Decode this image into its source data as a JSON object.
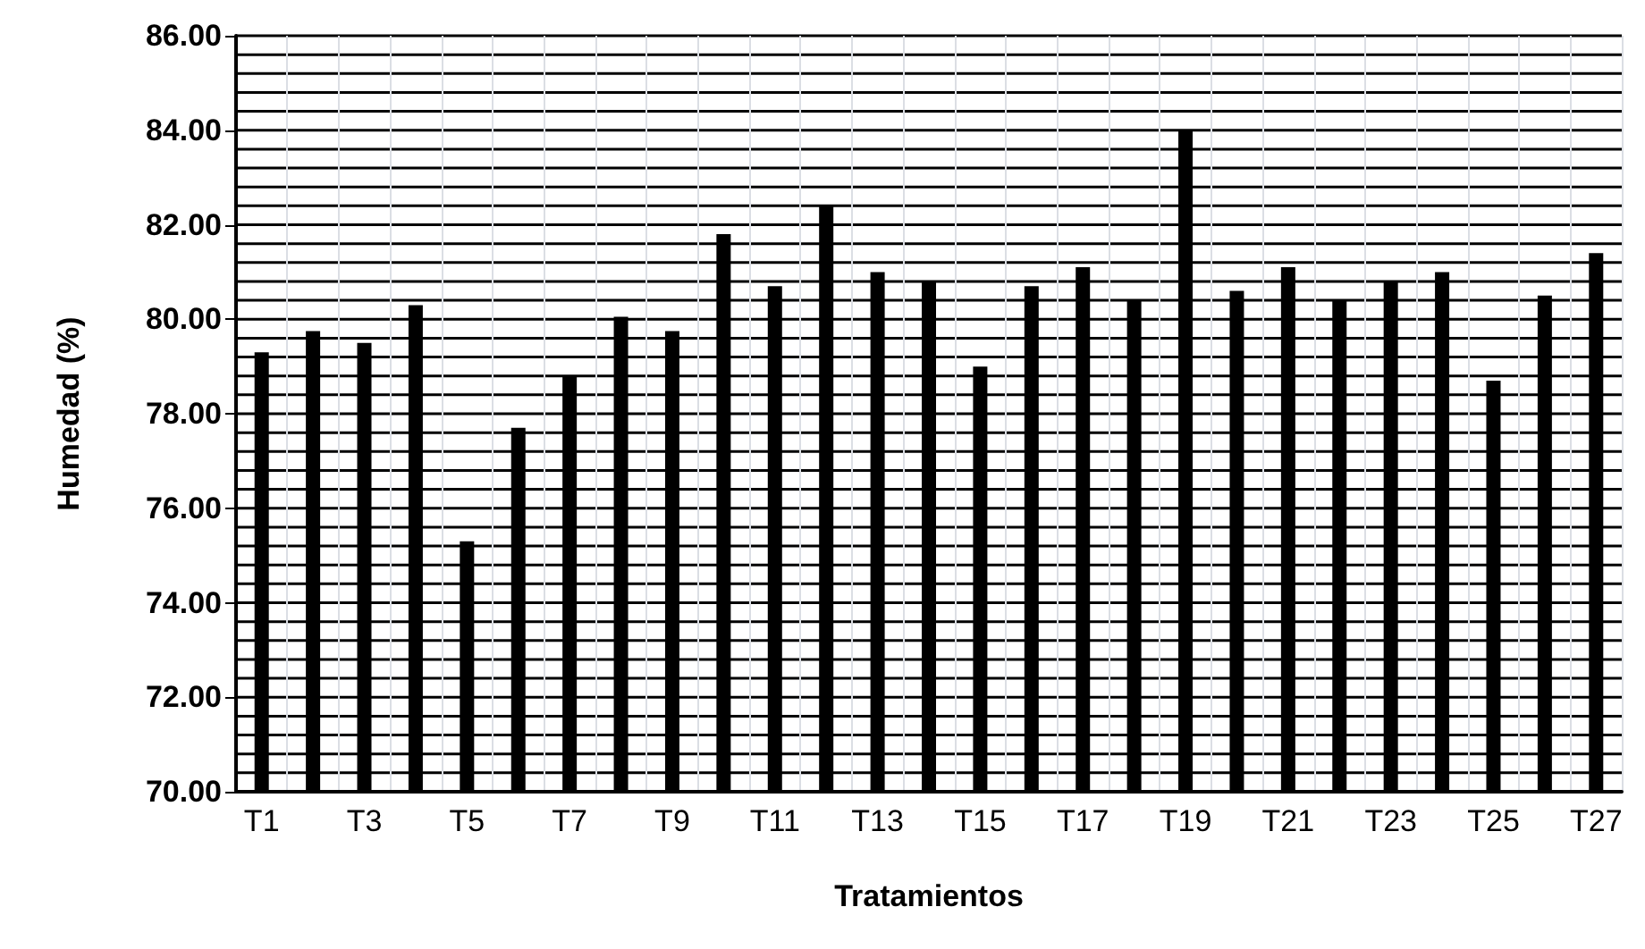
{
  "chart_data": {
    "type": "bar",
    "xlabel": "Tratamientos",
    "ylabel": "Humedad (%)",
    "categories": [
      "T1",
      null,
      "T3",
      null,
      "T5",
      null,
      "T7",
      null,
      "T9",
      null,
      "T11",
      null,
      "T13",
      null,
      "T15",
      null,
      "T17",
      null,
      "T19",
      null,
      "T21",
      null,
      "T23",
      null,
      "T25",
      null,
      "T27"
    ],
    "values": [
      79.3,
      79.75,
      79.5,
      80.3,
      75.3,
      77.7,
      78.8,
      80.05,
      79.75,
      81.8,
      80.7,
      82.4,
      81.0,
      80.8,
      79.0,
      80.7,
      81.1,
      80.4,
      84.0,
      80.6,
      81.1,
      80.4,
      80.8,
      81.0,
      78.7,
      80.5,
      81.4
    ],
    "color": "#000000",
    "ylim": [
      70,
      86
    ],
    "yticks": [
      {
        "value": 70,
        "label": "70.00"
      },
      {
        "value": 70.4,
        "label": null
      },
      {
        "value": 70.8,
        "label": null
      },
      {
        "value": 71.2,
        "label": null
      },
      {
        "value": 71.6,
        "label": null
      },
      {
        "value": 72,
        "label": "72.00"
      },
      {
        "value": 72.4,
        "label": null
      },
      {
        "value": 72.8,
        "label": null
      },
      {
        "value": 73.2,
        "label": null
      },
      {
        "value": 73.6,
        "label": null
      },
      {
        "value": 74,
        "label": "74.00"
      },
      {
        "value": 74.4,
        "label": null
      },
      {
        "value": 74.8,
        "label": null
      },
      {
        "value": 75.2,
        "label": null
      },
      {
        "value": 75.6,
        "label": null
      },
      {
        "value": 76,
        "label": "76.00"
      },
      {
        "value": 76.4,
        "label": null
      },
      {
        "value": 76.8,
        "label": null
      },
      {
        "value": 77.2,
        "label": null
      },
      {
        "value": 77.6,
        "label": null
      },
      {
        "value": 78,
        "label": "78.00"
      },
      {
        "value": 78.4,
        "label": null
      },
      {
        "value": 78.8,
        "label": null
      },
      {
        "value": 79.2,
        "label": null
      },
      {
        "value": 79.6,
        "label": null
      },
      {
        "value": 80,
        "label": "80.00"
      },
      {
        "value": 80.4,
        "label": null
      },
      {
        "value": 80.8,
        "label": null
      },
      {
        "value": 81.2,
        "label": null
      },
      {
        "value": 81.6,
        "label": null
      },
      {
        "value": 82,
        "label": "82.00"
      },
      {
        "value": 82.4,
        "label": null
      },
      {
        "value": 82.8,
        "label": null
      },
      {
        "value": 83.2,
        "label": null
      },
      {
        "value": 83.6,
        "label": null
      },
      {
        "value": 84,
        "label": "84.00"
      },
      {
        "value": 84.4,
        "label": null
      },
      {
        "value": 84.8,
        "label": null
      },
      {
        "value": 85.2,
        "label": null
      },
      {
        "value": 85.6,
        "label": null
      },
      {
        "value": 86,
        "label": "86.00"
      }
    ],
    "grid": true
  }
}
